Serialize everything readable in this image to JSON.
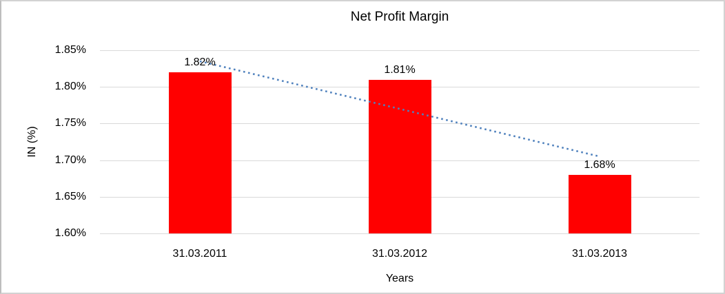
{
  "chart_data": {
    "type": "bar",
    "title": "Net Profit Margin",
    "xlabel": "Years",
    "ylabel": "IN (%)",
    "categories": [
      "31.03.2011",
      "31.03.2012",
      "31.03.2013"
    ],
    "values": [
      1.82,
      1.81,
      1.68
    ],
    "data_labels": [
      "1.82%",
      "1.81%",
      "1.68%"
    ],
    "bar_color": "#ff0000",
    "axis": {
      "ymin": 1.6,
      "ymax": 1.85,
      "tick_step": 0.05,
      "tick_labels": [
        "1.85%",
        "1.80%",
        "1.75%",
        "1.70%",
        "1.65%",
        "1.60%"
      ],
      "grid": true,
      "gridline_color": "#d9d9d9"
    },
    "trendline": {
      "style": "dotted",
      "color": "#4f81bd",
      "start_value": 1.835,
      "end_value": 1.705
    },
    "legend": "none"
  }
}
